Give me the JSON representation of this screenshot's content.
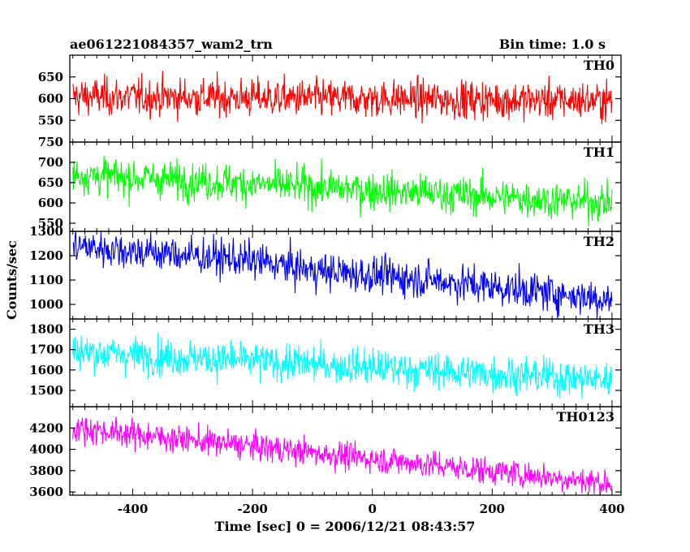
{
  "header": {
    "title": "ae061221084357_wam2_trn",
    "bin_time": "Bin time: 1.0 s"
  },
  "axes": {
    "xlabel": "Time [sec] 0 = 2006/12/21 08:43:57",
    "ylabel": "Counts/sec"
  },
  "chart_data": {
    "type": "line",
    "title": "ae061221084357_wam2_trn",
    "xlabel": "Time [sec] 0 = 2006/12/21 08:43:57",
    "ylabel": "Counts/sec",
    "xlim": [
      -505,
      415
    ],
    "x_ticks": [
      -400,
      -200,
      0,
      200,
      400
    ],
    "x_data_range": [
      -500,
      400
    ],
    "bin_time_s": 1.0,
    "grid": false,
    "legend": "none",
    "panels": [
      {
        "name": "TH0",
        "color": "#ff0000",
        "ylim": [
          500,
          700
        ],
        "y_ticks": [
          550,
          600,
          650
        ],
        "trend": [
          {
            "x": -500,
            "y": 605
          },
          {
            "x": 400,
            "y": 595
          }
        ],
        "noise_sd": 22
      },
      {
        "name": "TH1",
        "color": "#00ff00",
        "ylim": [
          530,
          750
        ],
        "y_ticks": [
          550,
          600,
          650,
          700,
          750
        ],
        "trend": [
          {
            "x": -500,
            "y": 670
          },
          {
            "x": 400,
            "y": 600
          }
        ],
        "noise_sd": 23
      },
      {
        "name": "TH2",
        "color": "#0000ff",
        "ylim": [
          940,
          1300
        ],
        "y_ticks": [
          1000,
          1100,
          1200,
          1300
        ],
        "trend": [
          {
            "x": -500,
            "y": 1240
          },
          {
            "x": -200,
            "y": 1180
          },
          {
            "x": -100,
            "y": 1140
          },
          {
            "x": 100,
            "y": 1100
          },
          {
            "x": 400,
            "y": 1020
          }
        ],
        "noise_sd": 38
      },
      {
        "name": "TH3",
        "color": "#00ffff",
        "ylim": [
          1420,
          1850
        ],
        "y_ticks": [
          1500,
          1600,
          1700,
          1800
        ],
        "trend": [
          {
            "x": -500,
            "y": 1690
          },
          {
            "x": 400,
            "y": 1550
          }
        ],
        "noise_sd": 45
      },
      {
        "name": "TH0123",
        "color": "#ff00ff",
        "ylim": [
          3570,
          4400
        ],
        "y_ticks": [
          3600,
          3800,
          4000,
          4200
        ],
        "trend": [
          {
            "x": -500,
            "y": 4200
          },
          {
            "x": 400,
            "y": 3680
          }
        ],
        "noise_sd": 65
      }
    ]
  }
}
